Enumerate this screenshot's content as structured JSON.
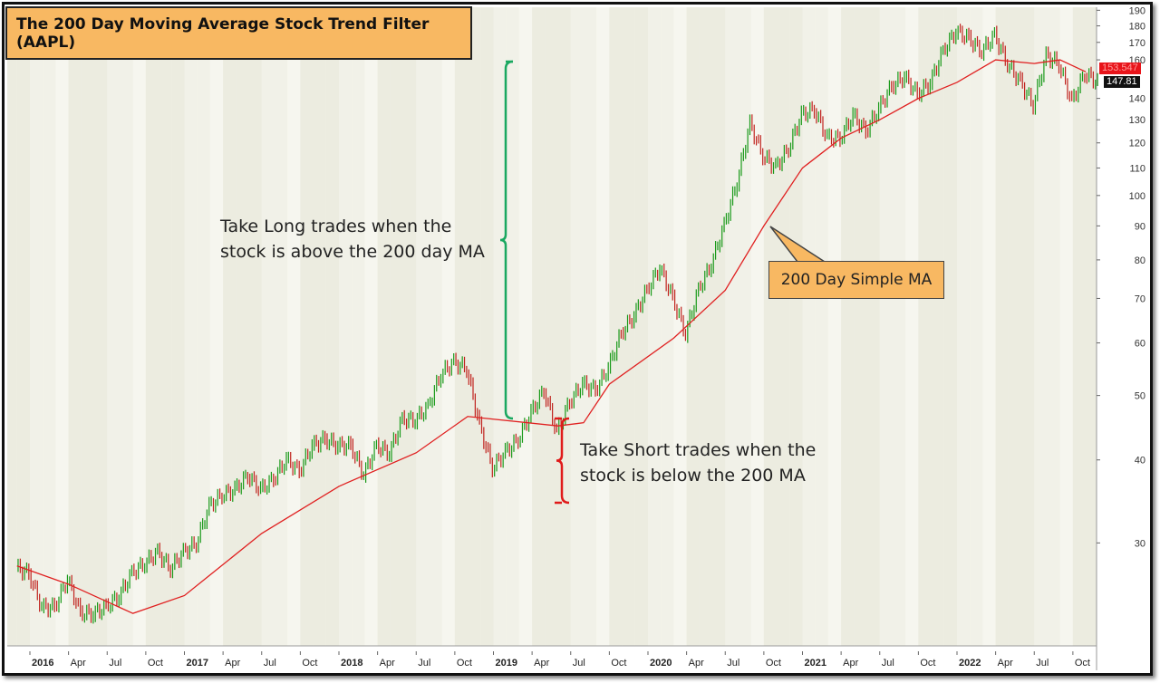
{
  "chart_data": {
    "type": "candlestick",
    "title": "The 200 Day Moving Average Stock Trend Filter (AAPL)",
    "y_scale": "log",
    "ylim": [
      21,
      192
    ],
    "y_ticks": [
      30,
      40,
      50,
      60,
      70,
      80,
      90,
      100,
      110,
      120,
      130,
      140,
      160,
      170,
      180,
      190
    ],
    "x_ticks": [
      {
        "label": "2016",
        "date": "2016-01",
        "bold": true
      },
      {
        "label": "Apr",
        "date": "2016-04"
      },
      {
        "label": "Jul",
        "date": "2016-07"
      },
      {
        "label": "Oct",
        "date": "2016-10"
      },
      {
        "label": "2017",
        "date": "2017-01",
        "bold": true
      },
      {
        "label": "Apr",
        "date": "2017-04"
      },
      {
        "label": "Jul",
        "date": "2017-07"
      },
      {
        "label": "Oct",
        "date": "2017-10"
      },
      {
        "label": "2018",
        "date": "2018-01",
        "bold": true
      },
      {
        "label": "Apr",
        "date": "2018-04"
      },
      {
        "label": "Jul",
        "date": "2018-07"
      },
      {
        "label": "Oct",
        "date": "2018-10"
      },
      {
        "label": "2019",
        "date": "2019-01",
        "bold": true
      },
      {
        "label": "Apr",
        "date": "2019-04"
      },
      {
        "label": "Jul",
        "date": "2019-07"
      },
      {
        "label": "Oct",
        "date": "2019-10"
      },
      {
        "label": "2020",
        "date": "2020-01",
        "bold": true
      },
      {
        "label": "Apr",
        "date": "2020-04"
      },
      {
        "label": "Jul",
        "date": "2020-07"
      },
      {
        "label": "Oct",
        "date": "2020-10"
      },
      {
        "label": "2021",
        "date": "2021-01",
        "bold": true
      },
      {
        "label": "Apr",
        "date": "2021-04"
      },
      {
        "label": "Jul",
        "date": "2021-07"
      },
      {
        "label": "Oct",
        "date": "2021-10"
      },
      {
        "label": "2022",
        "date": "2022-01",
        "bold": true
      },
      {
        "label": "Apr",
        "date": "2022-04"
      },
      {
        "label": "Jul",
        "date": "2022-07"
      },
      {
        "label": "Oct",
        "date": "2022-10"
      }
    ],
    "price": {
      "months": [
        "2015-12",
        "2016-01",
        "2016-02",
        "2016-03",
        "2016-04",
        "2016-05",
        "2016-06",
        "2016-07",
        "2016-08",
        "2016-09",
        "2016-10",
        "2016-11",
        "2016-12",
        "2017-01",
        "2017-02",
        "2017-03",
        "2017-04",
        "2017-05",
        "2017-06",
        "2017-07",
        "2017-08",
        "2017-09",
        "2017-10",
        "2017-11",
        "2017-12",
        "2018-01",
        "2018-02",
        "2018-03",
        "2018-04",
        "2018-05",
        "2018-06",
        "2018-07",
        "2018-08",
        "2018-09",
        "2018-10",
        "2018-11",
        "2018-12",
        "2019-01",
        "2019-02",
        "2019-03",
        "2019-04",
        "2019-05",
        "2019-06",
        "2019-07",
        "2019-08",
        "2019-09",
        "2019-10",
        "2019-11",
        "2019-12",
        "2020-01",
        "2020-02",
        "2020-03",
        "2020-04",
        "2020-05",
        "2020-06",
        "2020-07",
        "2020-08",
        "2020-09",
        "2020-10",
        "2020-11",
        "2020-12",
        "2021-01",
        "2021-02",
        "2021-03",
        "2021-04",
        "2021-05",
        "2021-06",
        "2021-07",
        "2021-08",
        "2021-09",
        "2021-10",
        "2021-11",
        "2021-12",
        "2022-01",
        "2022-02",
        "2022-03",
        "2022-04",
        "2022-05",
        "2022-06",
        "2022-07",
        "2022-08",
        "2022-09",
        "2022-10",
        "2022-11"
      ],
      "close": [
        27,
        24,
        24,
        26.5,
        23.5,
        23.5,
        24,
        25,
        27,
        28,
        29,
        27.5,
        29,
        30,
        34,
        35.5,
        36,
        38,
        36,
        37.5,
        40,
        38.5,
        42,
        43,
        42,
        42,
        38,
        42,
        41,
        46,
        46,
        48,
        54,
        56,
        55,
        45,
        39,
        41,
        43,
        47,
        51,
        44,
        49,
        52,
        51,
        55,
        62,
        66,
        72,
        78,
        70,
        62,
        72,
        79,
        90,
        105,
        128,
        115,
        110,
        118,
        132,
        135,
        122,
        122,
        132,
        125,
        135,
        146,
        151,
        142,
        148,
        165,
        177,
        172,
        165,
        174,
        158,
        148,
        137,
        162,
        158,
        138,
        153,
        147.81
      ]
    },
    "series": [
      {
        "name": "200 Day Simple MA",
        "color": "#e02020",
        "months": [
          "2015-12",
          "2016-04",
          "2016-09",
          "2017-01",
          "2017-07",
          "2018-01",
          "2018-07",
          "2018-11",
          "2019-06",
          "2019-08",
          "2019-10",
          "2020-03",
          "2020-07",
          "2020-10",
          "2021-01",
          "2021-04",
          "2021-07",
          "2021-10",
          "2022-01",
          "2022-04",
          "2022-07",
          "2022-09",
          "2022-11"
        ],
        "values": [
          27.7,
          26,
          23.5,
          25,
          31,
          36.5,
          41,
          46.5,
          45,
          45.5,
          52,
          61,
          72,
          90,
          110,
          122,
          130,
          140,
          148,
          160,
          158,
          160,
          153.5
        ]
      }
    ],
    "last_price_label": "147.81",
    "ma_price_label": "153.547",
    "annotations": {
      "long_text": [
        "Take Long trades when the",
        "stock is above the 200 day MA"
      ],
      "short_text": [
        "Take Short trades when the",
        "stock is below the 200 MA"
      ],
      "ma_callout": "200 Day Simple MA"
    },
    "colors": {
      "up": "#1a9a1a",
      "down": "#c0231e",
      "ma": "#e02020",
      "long_brace": "#1aa860",
      "short_brace": "#e01a1a",
      "callout": "#f8b862"
    }
  }
}
